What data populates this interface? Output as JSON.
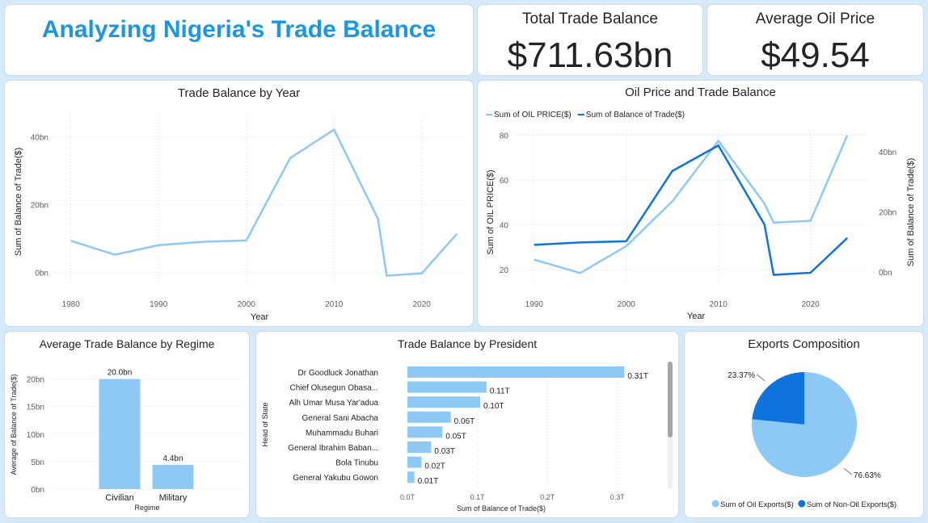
{
  "header": {
    "title": "Analyzing Nigeria's Trade Balance"
  },
  "kpis": {
    "total_trade_balance": {
      "label": "Total Trade Balance",
      "value": "$711.63bn"
    },
    "average_oil_price": {
      "label": "Average Oil Price",
      "value": "$49.54"
    }
  },
  "colors": {
    "light_blue": "#8ec8f5",
    "dark_blue": "#0f73de",
    "title_blue": "#1a97e0"
  },
  "chart_data": [
    {
      "id": "trade_balance_by_year",
      "type": "line",
      "title": "Trade Balance by Year",
      "xlabel": "Year",
      "ylabel": "Sum of Balance of Trade($)",
      "x_ticks": [
        "1980",
        "1990",
        "2000",
        "2010",
        "2020"
      ],
      "y_ticks": [
        "0bn",
        "20bn",
        "40bn"
      ],
      "xlim": [
        1978,
        2025
      ],
      "ylim": [
        -3,
        47
      ],
      "grid": true,
      "series": [
        {
          "x": [
            1980,
            1985,
            1990,
            1995,
            2000,
            2005,
            2010,
            2015,
            2016,
            2020,
            2024
          ],
          "y": [
            9.3,
            5.2,
            8.0,
            9.0,
            9.4,
            33.7,
            42.1,
            15.8,
            -1.0,
            -0.3,
            11.3
          ]
        }
      ]
    },
    {
      "id": "oil_price_and_trade_balance",
      "type": "line",
      "title": "Oil Price and Trade Balance",
      "xlabel": "Year",
      "ylabel": "Sum of OIL PRICE($)",
      "ylabel_right": "Sum of Balance of Trade($)",
      "legend_position": "top-left",
      "x_ticks": [
        "1990",
        "2000",
        "2010",
        "2020"
      ],
      "y_ticks_left": [
        "20",
        "40",
        "60",
        "80"
      ],
      "y_ticks_right": [
        "0bn",
        "20bn",
        "40bn"
      ],
      "xlim": [
        1988,
        2026
      ],
      "ylim_left": [
        15,
        82
      ],
      "ylim_right": [
        -3,
        47
      ],
      "grid": true,
      "series": [
        {
          "name": "Sum of OIL PRICE($)",
          "axis": "left",
          "x": [
            1990,
            1995,
            2000,
            2005,
            2010,
            2015,
            2016,
            2020,
            2024
          ],
          "y": [
            24.5,
            18.5,
            30.5,
            50.5,
            77.5,
            49.5,
            41.0,
            41.8,
            80.0
          ]
        },
        {
          "name": "Sum of Balance of Trade($)",
          "axis": "right",
          "x": [
            1990,
            1995,
            2000,
            2005,
            2010,
            2015,
            2016,
            2020,
            2024
          ],
          "y": [
            9.0,
            9.8,
            10.2,
            33.6,
            42.1,
            15.8,
            -1.0,
            -0.3,
            11.3
          ]
        }
      ]
    },
    {
      "id": "average_trade_balance_by_regime",
      "type": "bar",
      "title": "Average Trade Balance by Regime",
      "xlabel": "Regime",
      "ylabel": "Average of Balance of Trade($)",
      "categories": [
        "Civilian",
        "Military"
      ],
      "values": [
        20.0,
        4.4
      ],
      "data_labels": [
        "20.0bn",
        "4.4bn"
      ],
      "y_ticks": [
        "0bn",
        "5bn",
        "10bn",
        "15bn",
        "20bn"
      ],
      "ylim": [
        0,
        22
      ]
    },
    {
      "id": "trade_balance_by_president",
      "type": "bar",
      "orientation": "horizontal",
      "title": "Trade Balance by President",
      "xlabel": "Sum of Balance of Trade($)",
      "ylabel": "Head of State",
      "categories": [
        "Dr Goodluck Jonathan",
        "Chief Olusegun Obasa...",
        "Alh Umar Musa Yar'adua",
        "General Sani Abacha",
        "Muhammadu Buhari",
        "General Ibrahim Baban...",
        "Bola Tinubu",
        "General Yakubu Gowon"
      ],
      "values": [
        0.31,
        0.113,
        0.104,
        0.062,
        0.05,
        0.034,
        0.02,
        0.01
      ],
      "data_labels": [
        "0.31T",
        "0.11T",
        "0.10T",
        "0.06T",
        "0.05T",
        "0.03T",
        "0.02T",
        "0.01T"
      ],
      "x_ticks": [
        "0.0T",
        "0.1T",
        "0.2T",
        "0.3T"
      ],
      "xlim": [
        0,
        0.35
      ]
    },
    {
      "id": "exports_composition",
      "type": "pie",
      "title": "Exports Composition",
      "legend_position": "bottom",
      "slices": [
        {
          "name": "Sum of Oil Exports($)",
          "value": 76.63,
          "label": "76.63%"
        },
        {
          "name": "Sum of Non-Oil Exports($)",
          "value": 23.37,
          "label": "23.37%"
        }
      ]
    }
  ]
}
